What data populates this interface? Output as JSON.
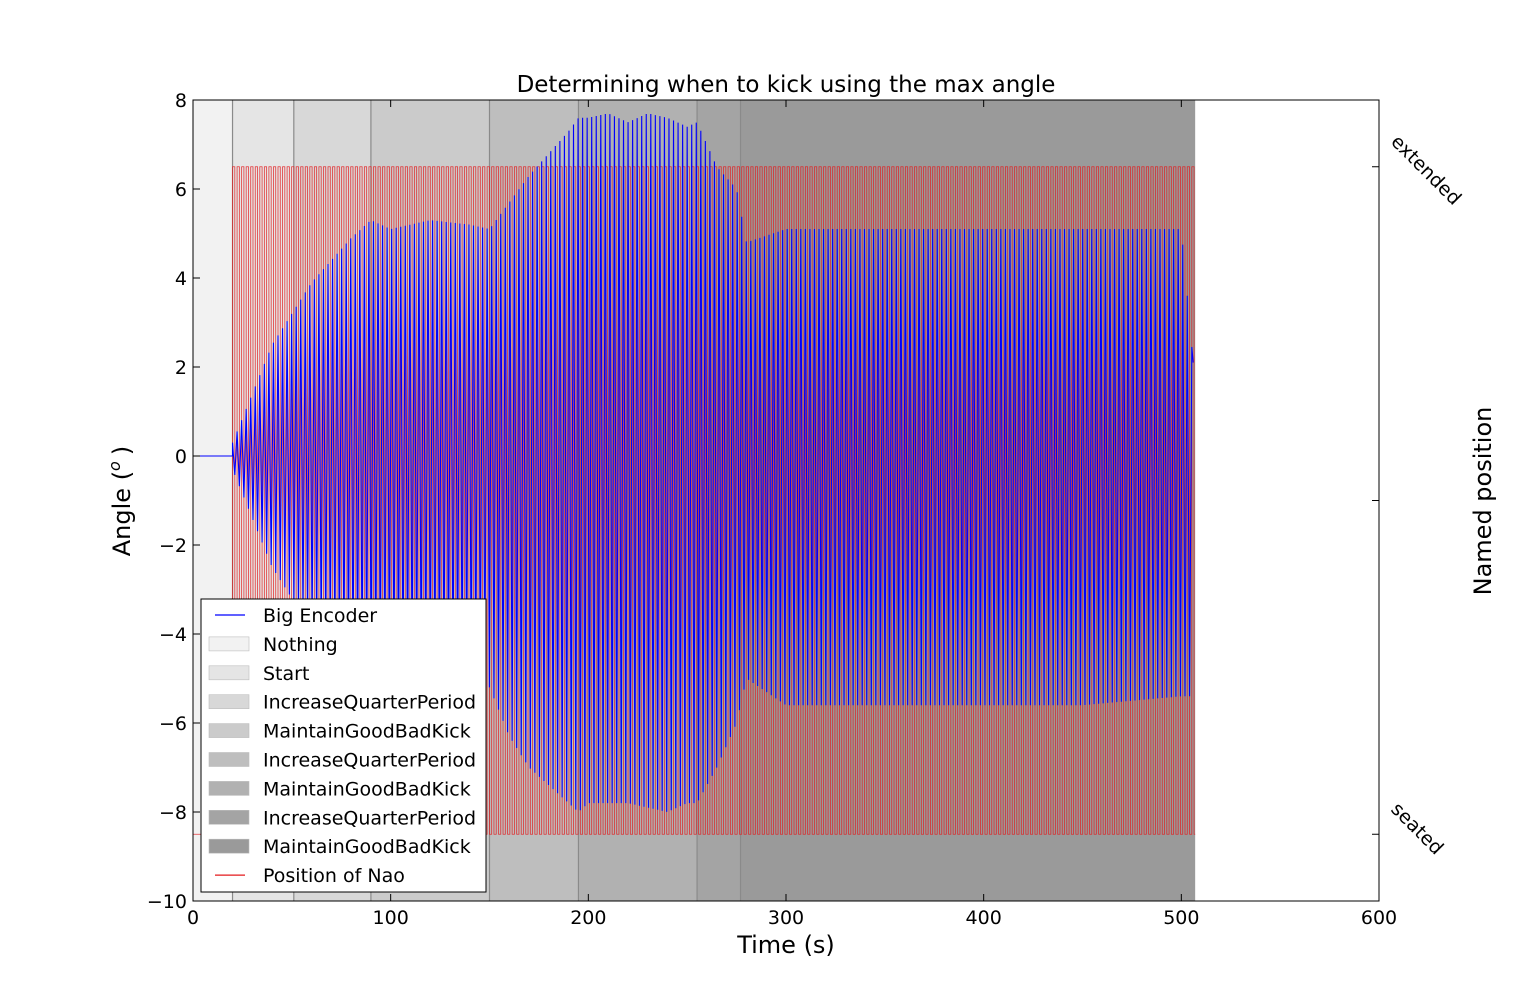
{
  "chart_data": {
    "type": "line",
    "title": "Determining when to kick using the max angle",
    "xlabel": "Time (s)",
    "ylabel": "Angle (",
    "ylabel_sup": "o",
    "ylabel_close": ")",
    "ylabel2": "Named position",
    "xlim": [
      0,
      600
    ],
    "ylim": [
      -10,
      8
    ],
    "xticks": [
      0,
      100,
      200,
      300,
      400,
      500,
      600
    ],
    "yticks": [
      -10,
      -8,
      -6,
      -4,
      -2,
      0,
      2,
      4,
      6,
      8
    ],
    "right_axis_labels": [
      {
        "text": "extended",
        "y": 6.5
      },
      {
        "text": "seated",
        "y": -8.5
      }
    ],
    "grid": false,
    "legend_position": "lower-left",
    "phases": [
      {
        "label": "Nothing",
        "x0": 0,
        "x1": 20,
        "color": "#f2f2f2"
      },
      {
        "label": "Start",
        "x0": 20,
        "x1": 51,
        "color": "#e5e5e5"
      },
      {
        "label": "IncreaseQuarterPeriod",
        "x0": 51,
        "x1": 90,
        "color": "#d8d8d8"
      },
      {
        "label": "MaintainGoodBadKick",
        "x0": 90,
        "x1": 150,
        "color": "#cbcbcb"
      },
      {
        "label": "IncreaseQuarterPeriod",
        "x0": 150,
        "x1": 195,
        "color": "#bebebe"
      },
      {
        "label": "MaintainGoodBadKick",
        "x0": 195,
        "x1": 255,
        "color": "#b1b1b1"
      },
      {
        "label": "IncreaseQuarterPeriod",
        "x0": 255,
        "x1": 277,
        "color": "#a4a4a4"
      },
      {
        "label": "MaintainGoodBadKick",
        "x0": 277,
        "x1": 507,
        "color": "#9a9a9a"
      }
    ],
    "series": [
      {
        "name": "Big Encoder",
        "color": "#0000ff",
        "description_points": {
          "t": [
            0,
            20,
            40,
            60,
            80,
            90,
            100,
            120,
            140,
            150,
            160,
            170,
            180,
            190,
            195,
            200,
            210,
            220,
            230,
            240,
            250,
            255,
            265,
            275,
            280,
            300,
            350,
            400,
            450,
            500,
            506
          ],
          "max_angle": [
            0,
            0.3,
            2.5,
            3.9,
            4.9,
            5.3,
            5.1,
            5.3,
            5.2,
            5.1,
            5.7,
            6.3,
            6.8,
            7.3,
            7.6,
            7.6,
            7.7,
            7.5,
            7.7,
            7.6,
            7.4,
            7.5,
            6.5,
            6.0,
            4.8,
            5.1,
            5.1,
            5.1,
            5.1,
            5.1,
            2.1
          ],
          "min_angle": [
            0,
            -0.3,
            -2.5,
            -3.9,
            -4.9,
            -5.3,
            -5.1,
            -5.3,
            -5.2,
            -5.2,
            -6.3,
            -7.0,
            -7.4,
            -7.8,
            -8.0,
            -7.8,
            -7.8,
            -7.8,
            -7.9,
            -8.0,
            -7.8,
            -7.8,
            -7.0,
            -6.0,
            -5.0,
            -5.6,
            -5.6,
            -5.6,
            -5.6,
            -5.4,
            -5.4
          ]
        }
      },
      {
        "name": "Position of Nao",
        "color": "#e41a1c",
        "levels": {
          "high": 6.5,
          "low": -8.5
        },
        "start": 20,
        "end": 507
      }
    ],
    "legend": [
      {
        "label": "Big Encoder",
        "kind": "line",
        "color": "#0000ff"
      },
      {
        "label": "Nothing",
        "kind": "patch",
        "color": "#f2f2f2"
      },
      {
        "label": "Start",
        "kind": "patch",
        "color": "#e5e5e5"
      },
      {
        "label": "IncreaseQuarterPeriod",
        "kind": "patch",
        "color": "#d8d8d8"
      },
      {
        "label": "MaintainGoodBadKick",
        "kind": "patch",
        "color": "#cbcbcb"
      },
      {
        "label": "IncreaseQuarterPeriod",
        "kind": "patch",
        "color": "#bebebe"
      },
      {
        "label": "MaintainGoodBadKick",
        "kind": "patch",
        "color": "#b1b1b1"
      },
      {
        "label": "IncreaseQuarterPeriod",
        "kind": "patch",
        "color": "#a4a4a4"
      },
      {
        "label": "MaintainGoodBadKick",
        "kind": "patch",
        "color": "#9a9a9a"
      },
      {
        "label": "Position of Nao",
        "kind": "line",
        "color": "#e41a1c"
      }
    ]
  }
}
